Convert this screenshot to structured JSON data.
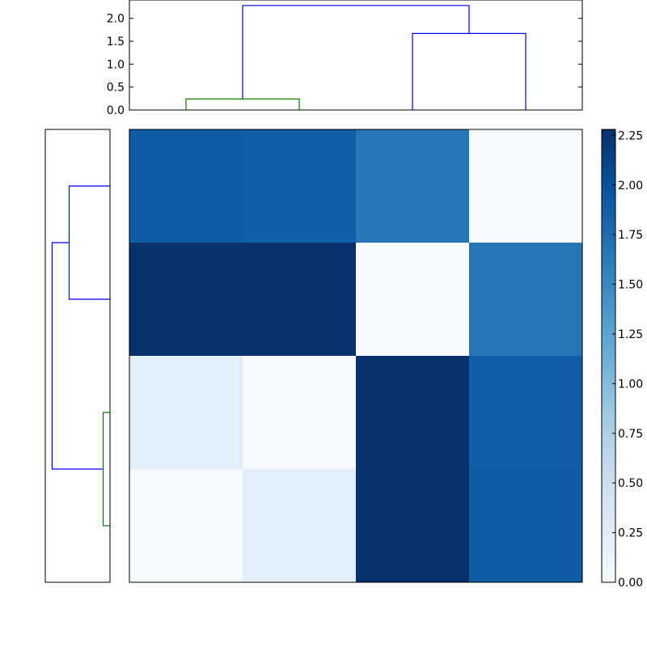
{
  "chart_data": [
    {
      "type": "dendrogram",
      "orientation": "top",
      "ylim": [
        0,
        2.4
      ],
      "yticks": [
        "0.0",
        "0.5",
        "1.0",
        "1.5",
        "2.0"
      ],
      "links": [
        {
          "left": 0,
          "right": 1,
          "height": 0.24,
          "color": "#008000"
        },
        {
          "left": 2,
          "right": 3,
          "height": 1.67,
          "color": "#0000ff"
        },
        {
          "left": "0-1",
          "right": "2-3",
          "height": 2.28,
          "color": "#0000ff"
        }
      ]
    },
    {
      "type": "dendrogram",
      "orientation": "left",
      "links": [
        {
          "top": 0,
          "bottom": 1,
          "height": 0.24,
          "color": "#0000ff"
        },
        {
          "top": 2,
          "bottom": 3,
          "height": 0.04,
          "color": "#008000"
        },
        {
          "top": "0-1",
          "bottom": "2-3",
          "height": 0.34,
          "color": "#0000ff"
        }
      ]
    },
    {
      "type": "heatmap",
      "rows": 4,
      "cols": 4,
      "values": [
        [
          1.9,
          1.88,
          1.67,
          0.0
        ],
        [
          2.28,
          2.26,
          0.0,
          1.67
        ],
        [
          0.24,
          0.0,
          2.26,
          1.88
        ],
        [
          0.0,
          0.24,
          2.28,
          1.9
        ]
      ],
      "colormap": "Blues",
      "vmin": 0,
      "vmax": 2.28,
      "colorbar_ticks": [
        "0.00",
        "0.25",
        "0.50",
        "0.75",
        "1.00",
        "1.25",
        "1.50",
        "1.75",
        "2.00",
        "2.25"
      ]
    }
  ]
}
